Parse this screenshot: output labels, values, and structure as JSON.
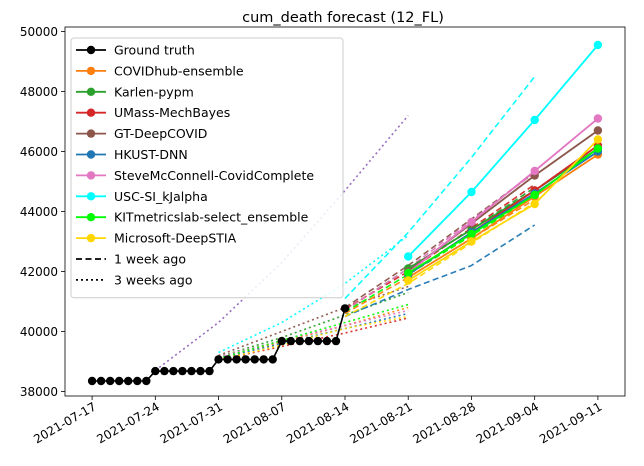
{
  "chart_data": {
    "type": "line",
    "title": "cum_death forecast (12_FL)",
    "xlabel": "",
    "ylabel": "",
    "x_ticks": [
      "2021-07-17",
      "2021-07-24",
      "2021-07-31",
      "2021-08-07",
      "2021-08-14",
      "2021-08-21",
      "2021-08-28",
      "2021-09-04",
      "2021-09-11"
    ],
    "y_ticks": [
      38000,
      40000,
      42000,
      44000,
      46000,
      48000,
      50000
    ],
    "xlim": [
      "2021-07-14",
      "2021-09-14"
    ],
    "ylim": [
      37850,
      50150
    ],
    "grid": false,
    "legend_position": "top-left",
    "legend": [
      {
        "label": "Ground truth",
        "color": "#000000",
        "style": "solid",
        "marker": true
      },
      {
        "label": "COVIDhub-ensemble",
        "color": "#ff7f0e",
        "style": "solid",
        "marker": true
      },
      {
        "label": "Karlen-pypm",
        "color": "#2ca02c",
        "style": "solid",
        "marker": true
      },
      {
        "label": "UMass-MechBayes",
        "color": "#d62728",
        "style": "solid",
        "marker": true
      },
      {
        "label": "GT-DeepCOVID",
        "color": "#8c564b",
        "style": "solid",
        "marker": true
      },
      {
        "label": "HKUST-DNN",
        "color": "#1f77b4",
        "style": "solid",
        "marker": true
      },
      {
        "label": "SteveMcConnell-CovidComplete",
        "color": "#e377c2",
        "style": "solid",
        "marker": true
      },
      {
        "label": "USC-SI_kJalpha",
        "color": "#00ffff",
        "style": "solid",
        "marker": true
      },
      {
        "label": "KITmetricslab-select_ensemble",
        "color": "#00ff00",
        "style": "solid",
        "marker": true
      },
      {
        "label": "Microsoft-DeepSTIA",
        "color": "#ffd700",
        "style": "solid",
        "marker": true
      },
      {
        "label": "1 week ago",
        "color": "#000000",
        "style": "dashed",
        "marker": false
      },
      {
        "label": "3 weeks ago",
        "color": "#000000",
        "style": "dotted",
        "marker": false
      }
    ],
    "ground_truth": {
      "name": "Ground truth",
      "color": "#000000",
      "x": [
        "2021-07-17",
        "2021-07-18",
        "2021-07-19",
        "2021-07-20",
        "2021-07-21",
        "2021-07-22",
        "2021-07-23",
        "2021-07-24",
        "2021-07-25",
        "2021-07-26",
        "2021-07-27",
        "2021-07-28",
        "2021-07-29",
        "2021-07-30",
        "2021-07-31",
        "2021-08-01",
        "2021-08-02",
        "2021-08-03",
        "2021-08-04",
        "2021-08-05",
        "2021-08-06",
        "2021-08-07",
        "2021-08-08",
        "2021-08-09",
        "2021-08-10",
        "2021-08-11",
        "2021-08-12",
        "2021-08-13",
        "2021-08-14"
      ],
      "y": [
        38350,
        38350,
        38350,
        38350,
        38350,
        38350,
        38350,
        38680,
        38680,
        38680,
        38680,
        38680,
        38680,
        38680,
        39070,
        39070,
        39070,
        39070,
        39070,
        39070,
        39070,
        39680,
        39680,
        39680,
        39680,
        39680,
        39680,
        39680,
        40770
      ]
    },
    "forecasts": [
      {
        "name": "COVIDhub-ensemble",
        "color": "#ff7f0e",
        "x": [
          "2021-08-21",
          "2021-08-28",
          "2021-09-04",
          "2021-09-11"
        ],
        "y": [
          41800,
          43100,
          44500,
          45900
        ]
      },
      {
        "name": "Karlen-pypm",
        "color": "#2ca02c",
        "x": [
          "2021-08-21",
          "2021-08-28",
          "2021-09-04",
          "2021-09-11"
        ],
        "y": [
          42100,
          43400,
          44700,
          46100
        ]
      },
      {
        "name": "UMass-MechBayes",
        "color": "#d62728",
        "x": [
          "2021-08-21",
          "2021-08-28",
          "2021-09-04",
          "2021-09-11"
        ],
        "y": [
          41900,
          43300,
          44700,
          46200
        ]
      },
      {
        "name": "GT-DeepCOVID",
        "color": "#8c564b",
        "x": [
          "2021-08-21",
          "2021-08-28",
          "2021-09-04",
          "2021-09-11"
        ],
        "y": [
          42000,
          43600,
          45200,
          46700
        ]
      },
      {
        "name": "HKUST-DNN",
        "color": "#1f77b4",
        "x": [
          "2021-08-21",
          "2021-08-28",
          "2021-09-04",
          "2021-09-11"
        ],
        "y": [
          41900,
          43300,
          44600,
          46000
        ]
      },
      {
        "name": "SteveMcConnell-CovidComplete",
        "color": "#e377c2",
        "x": [
          "2021-08-21",
          "2021-08-28",
          "2021-09-04",
          "2021-09-11"
        ],
        "y": [
          41950,
          43650,
          45350,
          47100
        ]
      },
      {
        "name": "USC-SI_kJalpha",
        "color": "#00ffff",
        "x": [
          "2021-08-21",
          "2021-08-28",
          "2021-09-04",
          "2021-09-11"
        ],
        "y": [
          42500,
          44650,
          47050,
          49550
        ]
      },
      {
        "name": "KITmetricslab-select_ensemble",
        "color": "#00ff00",
        "x": [
          "2021-08-21",
          "2021-08-28",
          "2021-09-04",
          "2021-09-11"
        ],
        "y": [
          41950,
          43250,
          44550,
          46100
        ]
      },
      {
        "name": "Microsoft-DeepSTIA",
        "color": "#ffd700",
        "x": [
          "2021-08-21",
          "2021-08-28",
          "2021-09-04",
          "2021-09-11"
        ],
        "y": [
          41700,
          43000,
          44250,
          46400
        ]
      }
    ],
    "forecasts_1_week_ago": [
      {
        "name": "COVIDhub-ensemble",
        "color": "#ff7f0e",
        "x": [
          "2021-08-14",
          "2021-08-21",
          "2021-08-28",
          "2021-09-04"
        ],
        "y": [
          40600,
          41800,
          43100,
          44400
        ]
      },
      {
        "name": "Karlen-pypm",
        "color": "#2ca02c",
        "x": [
          "2021-08-14",
          "2021-08-21",
          "2021-08-28",
          "2021-09-04"
        ],
        "y": [
          40700,
          42100,
          43400,
          44800
        ]
      },
      {
        "name": "UMass-MechBayes",
        "color": "#d62728",
        "x": [
          "2021-08-14",
          "2021-08-21",
          "2021-08-28",
          "2021-09-04"
        ],
        "y": [
          40750,
          42000,
          43450,
          44900
        ]
      },
      {
        "name": "GT-DeepCOVID",
        "color": "#8c564b",
        "x": [
          "2021-08-14",
          "2021-08-21",
          "2021-08-28",
          "2021-09-04"
        ],
        "y": [
          40800,
          42200,
          43750,
          45300
        ]
      },
      {
        "name": "HKUST-DNN",
        "color": "#1f77b4",
        "x": [
          "2021-08-14",
          "2021-08-21",
          "2021-08-28",
          "2021-09-04"
        ],
        "y": [
          40500,
          41400,
          42200,
          43550
        ]
      },
      {
        "name": "SteveMcConnell-CovidComplete",
        "color": "#e377c2",
        "x": [
          "2021-08-14",
          "2021-08-21",
          "2021-08-28",
          "2021-09-04"
        ],
        "y": [
          40700,
          42100,
          43700,
          45300
        ]
      },
      {
        "name": "USC-SI_kJalpha",
        "color": "#00ffff",
        "x": [
          "2021-08-14",
          "2021-08-21",
          "2021-08-28",
          "2021-09-04"
        ],
        "y": [
          41100,
          43300,
          45800,
          48500
        ]
      },
      {
        "name": "KITmetricslab-select_ensemble",
        "color": "#00ff00",
        "x": [
          "2021-08-14",
          "2021-08-21",
          "2021-08-28",
          "2021-09-04"
        ],
        "y": [
          40650,
          41900,
          43200,
          44500
        ]
      },
      {
        "name": "Microsoft-DeepSTIA",
        "color": "#ffd700",
        "x": [
          "2021-08-14",
          "2021-08-21",
          "2021-08-28",
          "2021-09-04"
        ],
        "y": [
          40500,
          41600,
          42950,
          44300
        ]
      }
    ],
    "forecasts_3_weeks_ago": [
      {
        "name": "COVIDhub-ensemble",
        "color": "#ff7f0e",
        "x": [
          "2021-07-31",
          "2021-08-07",
          "2021-08-14",
          "2021-08-21"
        ],
        "y": [
          39100,
          39650,
          40200,
          40800
        ]
      },
      {
        "name": "Karlen-pypm",
        "color": "#2ca02c",
        "x": [
          "2021-07-31",
          "2021-08-07",
          "2021-08-14",
          "2021-08-21"
        ],
        "y": [
          39150,
          39800,
          40550,
          41300
        ]
      },
      {
        "name": "UMass-MechBayes",
        "color": "#d62728",
        "x": [
          "2021-07-31",
          "2021-08-07",
          "2021-08-14",
          "2021-08-21"
        ],
        "y": [
          39050,
          39500,
          39950,
          40450
        ]
      },
      {
        "name": "GT-DeepCOVID",
        "color": "#8c564b",
        "x": [
          "2021-07-31",
          "2021-08-07",
          "2021-08-14",
          "2021-08-21"
        ],
        "y": [
          39200,
          40000,
          40800,
          41500
        ]
      },
      {
        "name": "HKUST-DNN",
        "color": "#1f77b4",
        "x": [
          "2021-07-31",
          "2021-08-07",
          "2021-08-14",
          "2021-08-21"
        ],
        "y": [
          39100,
          39600,
          40100,
          40600
        ]
      },
      {
        "name": "SteveMcConnell-CovidComplete",
        "color": "#e377c2",
        "x": [
          "2021-07-31",
          "2021-08-07",
          "2021-08-14",
          "2021-08-21"
        ],
        "y": [
          39150,
          39700,
          40200,
          40700
        ]
      },
      {
        "name": "USC-SI_kJalpha",
        "color": "#00ffff",
        "x": [
          "2021-07-31",
          "2021-08-07",
          "2021-08-14",
          "2021-08-21"
        ],
        "y": [
          39300,
          40300,
          41600,
          43200
        ]
      },
      {
        "name": "KITmetricslab-select_ensemble",
        "color": "#00ff00",
        "x": [
          "2021-07-31",
          "2021-08-07",
          "2021-08-14",
          "2021-08-21"
        ],
        "y": [
          39100,
          39700,
          40300,
          40900
        ]
      },
      {
        "name": "Microsoft-DeepSTIA",
        "color": "#ffd700",
        "x": [
          "2021-07-31",
          "2021-08-07",
          "2021-08-14",
          "2021-08-21"
        ],
        "y": [
          39050,
          39550,
          40100,
          40500
        ]
      },
      {
        "name": "",
        "color": "#9467bd",
        "x": [
          "2021-07-24",
          "2021-07-31",
          "2021-08-07",
          "2021-08-14",
          "2021-08-21"
        ],
        "y": [
          38700,
          40300,
          42300,
          44700,
          47200
        ]
      }
    ]
  }
}
